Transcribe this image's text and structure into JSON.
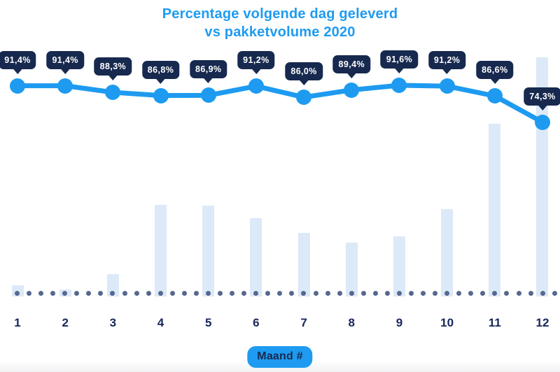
{
  "title": {
    "line1": "Percentage volgende dag geleverd",
    "line2": "vs pakketvolume 2020"
  },
  "x_axis": {
    "title_badge": "Maand #",
    "labels": [
      "1",
      "2",
      "3",
      "4",
      "5",
      "6",
      "7",
      "8",
      "9",
      "10",
      "11",
      "12"
    ]
  },
  "chart_data": {
    "type": "combo",
    "title": "Percentage volgende dag geleverd vs pakketvolume 2020",
    "xlabel": "Maand #",
    "ylabel": "",
    "grid": false,
    "legend": "none",
    "baseline_style": "dotted",
    "categories": [
      1,
      2,
      3,
      4,
      5,
      6,
      7,
      8,
      9,
      10,
      11,
      12
    ],
    "series": [
      {
        "name": "Percentage volgende dag geleverd",
        "type": "line",
        "unit": "%",
        "values": [
          91.4,
          91.4,
          88.3,
          86.8,
          86.9,
          91.2,
          86.0,
          89.4,
          91.6,
          91.2,
          86.6,
          74.3
        ],
        "point_labels": [
          "91,4%",
          "91,4%",
          "88,3%",
          "86,8%",
          "86,9%",
          "91,2%",
          "86,0%",
          "89,4%",
          "91,6%",
          "91,2%",
          "86,6%",
          "74,3%"
        ]
      },
      {
        "name": "pakketvolume 2020",
        "type": "bar",
        "unit": "relative-to-max-percent",
        "values": [
          4.7,
          2.9,
          9.4,
          38.3,
          38.0,
          32.7,
          26.6,
          22.5,
          25.1,
          36.5,
          72.2,
          100
        ]
      }
    ]
  },
  "colors": {
    "accent_blue": "#1E9BF0",
    "badge_navy": "#17294E",
    "badge_text": "#FFFFFF",
    "bar_fill": "#DCE9F8",
    "baseline_dot": "#56688F",
    "axis_label_navy": "#16275B"
  }
}
